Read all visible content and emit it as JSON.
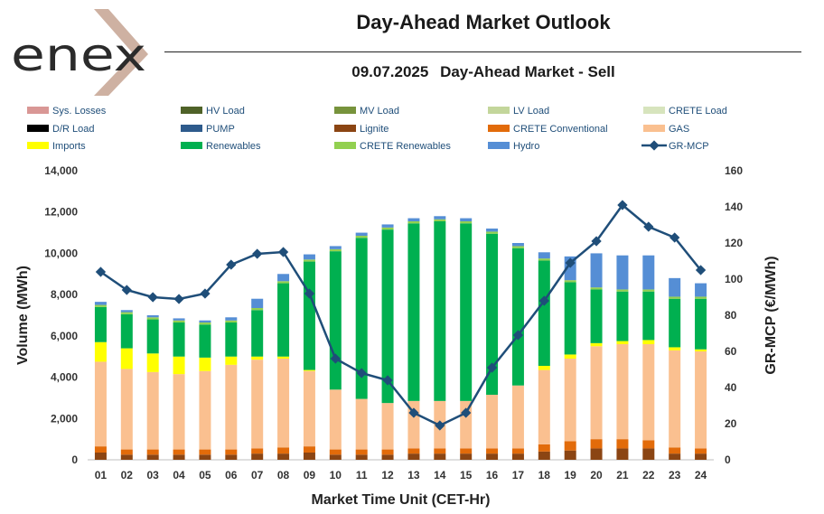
{
  "brand": {
    "logo_text": "enex",
    "logo_color": "#2b2b2b",
    "accent": "#c9a898"
  },
  "header": {
    "title": "Day-Ahead Market Outlook",
    "date": "09.07.2025",
    "subtitle": "Day-Ahead Market - Sell"
  },
  "chart_data": {
    "type": "bar",
    "stacked": true,
    "xlabel": "Market Time Unit (CET-Hr)",
    "ylabel": "Volume (MWh)",
    "ylabel_right": "GR-MCP (€/MWh)",
    "ylim": [
      0,
      14000
    ],
    "ylim_right": [
      0,
      160
    ],
    "yticks": [
      "0",
      "2,000",
      "4,000",
      "6,000",
      "8,000",
      "10,000",
      "12,000",
      "14,000"
    ],
    "yticks_right": [
      "0",
      "20",
      "40",
      "60",
      "80",
      "100",
      "120",
      "140",
      "160"
    ],
    "categories": [
      "01",
      "02",
      "03",
      "04",
      "05",
      "06",
      "07",
      "08",
      "09",
      "10",
      "11",
      "12",
      "13",
      "14",
      "15",
      "16",
      "17",
      "18",
      "19",
      "20",
      "21",
      "22",
      "23",
      "24"
    ],
    "series": [
      {
        "name": "Sys. Losses",
        "color": "#d99795",
        "values": [
          0,
          0,
          0,
          0,
          0,
          0,
          0,
          0,
          0,
          0,
          0,
          0,
          0,
          0,
          0,
          0,
          0,
          0,
          0,
          0,
          0,
          0,
          0,
          0
        ]
      },
      {
        "name": "HV Load",
        "color": "#4f6228",
        "values": [
          0,
          0,
          0,
          0,
          0,
          0,
          0,
          0,
          0,
          0,
          0,
          0,
          0,
          0,
          0,
          0,
          0,
          0,
          0,
          0,
          0,
          0,
          0,
          0
        ]
      },
      {
        "name": "MV Load",
        "color": "#77933c",
        "values": [
          0,
          0,
          0,
          0,
          0,
          0,
          0,
          0,
          0,
          0,
          0,
          0,
          0,
          0,
          0,
          0,
          0,
          0,
          0,
          0,
          0,
          0,
          0,
          0
        ]
      },
      {
        "name": "LV Load",
        "color": "#c3d69b",
        "values": [
          0,
          0,
          0,
          0,
          0,
          0,
          0,
          0,
          0,
          0,
          0,
          0,
          0,
          0,
          0,
          0,
          0,
          0,
          0,
          0,
          0,
          0,
          0,
          0
        ]
      },
      {
        "name": "CRETE Load",
        "color": "#d7e4bd",
        "values": [
          0,
          0,
          0,
          0,
          0,
          0,
          0,
          0,
          0,
          0,
          0,
          0,
          0,
          0,
          0,
          0,
          0,
          0,
          0,
          0,
          0,
          0,
          0,
          0
        ]
      },
      {
        "name": "D/R Load",
        "color": "#000000",
        "values": [
          0,
          0,
          0,
          0,
          0,
          0,
          0,
          0,
          0,
          0,
          0,
          0,
          0,
          0,
          0,
          0,
          0,
          0,
          0,
          0,
          0,
          0,
          0,
          0
        ]
      },
      {
        "name": "PUMP",
        "color": "#2e5b8c",
        "values": [
          0,
          0,
          0,
          0,
          0,
          0,
          0,
          0,
          0,
          0,
          0,
          0,
          0,
          0,
          0,
          0,
          0,
          0,
          0,
          0,
          0,
          0,
          0,
          0
        ]
      },
      {
        "name": "Lignite",
        "color": "#8b4513",
        "values": [
          350,
          250,
          250,
          250,
          250,
          250,
          300,
          300,
          350,
          250,
          250,
          250,
          300,
          300,
          300,
          300,
          300,
          400,
          450,
          550,
          550,
          550,
          300,
          300
        ]
      },
      {
        "name": "CRETE Conventional",
        "color": "#e26b0a",
        "values": [
          300,
          250,
          250,
          250,
          250,
          250,
          250,
          300,
          300,
          250,
          250,
          250,
          250,
          250,
          250,
          250,
          250,
          350,
          450,
          450,
          450,
          400,
          300,
          250
        ]
      },
      {
        "name": "GAS",
        "color": "#fac090",
        "values": [
          4100,
          3900,
          3750,
          3650,
          3800,
          4100,
          4300,
          4300,
          3650,
          2900,
          2450,
          2250,
          2300,
          2300,
          2300,
          2600,
          3050,
          3600,
          4000,
          4500,
          4600,
          4650,
          4700,
          4700
        ]
      },
      {
        "name": "Imports",
        "color": "#ffff00",
        "values": [
          950,
          1000,
          900,
          850,
          650,
          400,
          150,
          100,
          50,
          0,
          0,
          0,
          0,
          0,
          0,
          0,
          0,
          200,
          200,
          150,
          150,
          200,
          150,
          100
        ]
      },
      {
        "name": "Renewables",
        "color": "#00b050",
        "values": [
          1700,
          1650,
          1650,
          1650,
          1600,
          1650,
          2250,
          3550,
          5250,
          6700,
          7800,
          8400,
          8600,
          8700,
          8600,
          7800,
          6650,
          5100,
          3500,
          2600,
          2400,
          2350,
          2350,
          2450
        ]
      },
      {
        "name": "CRETE Renewables",
        "color": "#92d050",
        "values": [
          100,
          100,
          100,
          100,
          100,
          100,
          100,
          100,
          100,
          100,
          100,
          100,
          100,
          100,
          100,
          100,
          100,
          100,
          100,
          100,
          100,
          100,
          100,
          100
        ]
      },
      {
        "name": "Hydro",
        "color": "#558ed5",
        "values": [
          150,
          100,
          100,
          100,
          100,
          150,
          450,
          350,
          250,
          150,
          150,
          150,
          150,
          150,
          150,
          150,
          150,
          300,
          1150,
          1650,
          1650,
          1650,
          900,
          650
        ]
      }
    ],
    "line": {
      "name": "GR-MCP",
      "color": "#1f4e79",
      "values": [
        104,
        94,
        90,
        89,
        92,
        108,
        114,
        115,
        92,
        56,
        48,
        44,
        26,
        19,
        26,
        51,
        69,
        88,
        109,
        121,
        141,
        129,
        123,
        105
      ]
    }
  }
}
